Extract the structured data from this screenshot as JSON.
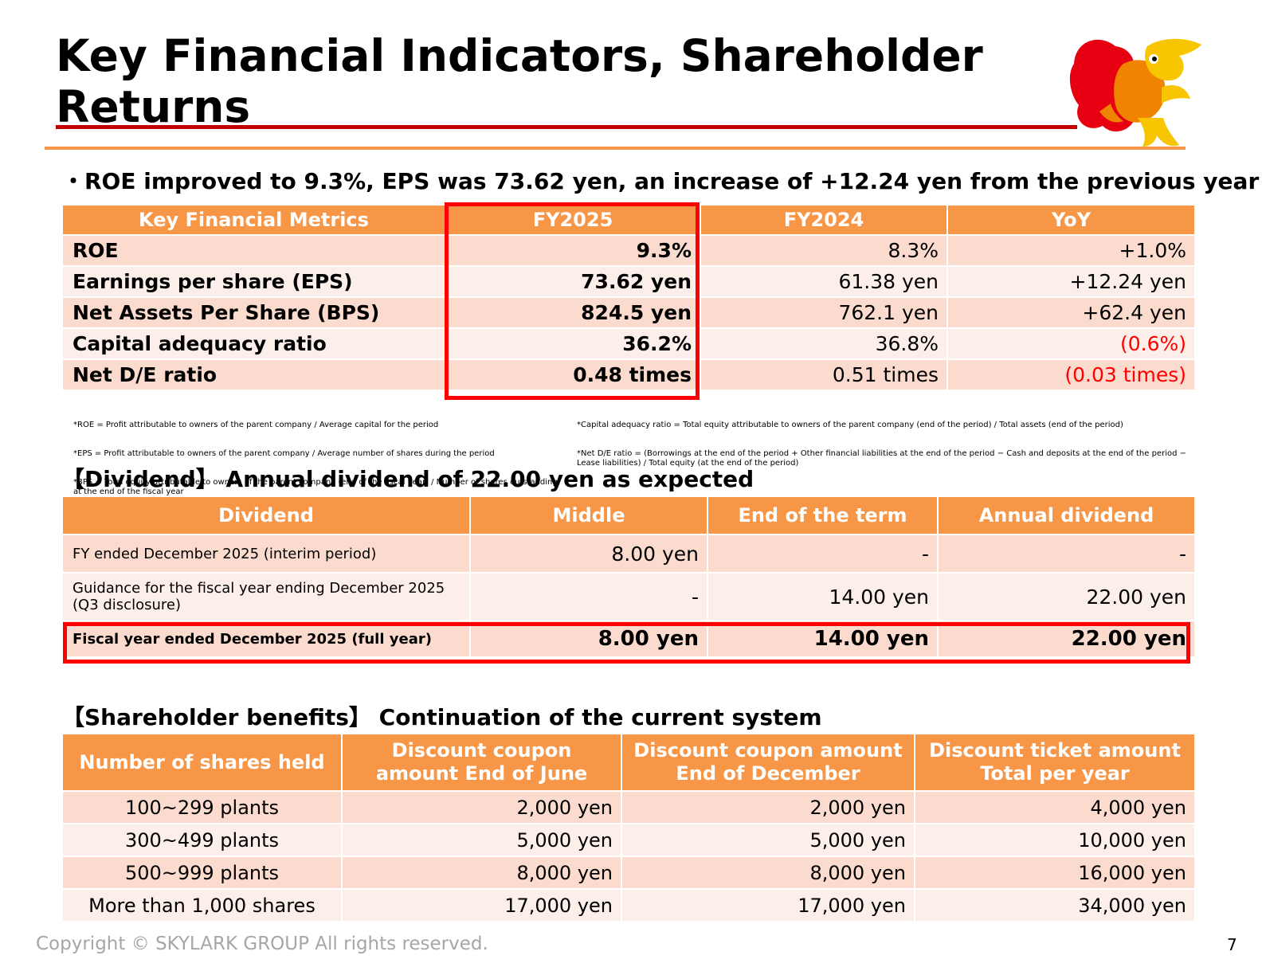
{
  "title": "Key Financial Indicators, Shareholder Returns",
  "headline": "・ROE improved to 9.3%, EPS was 73.62 yen, an increase of +12.24 yen from the previous year",
  "metrics": {
    "headers": [
      "Key Financial Metrics",
      "FY2025",
      "FY2024",
      "YoY"
    ],
    "rows": [
      {
        "label": "ROE",
        "fy2025": "9.3%",
        "fy2024": "8.3%",
        "yoy": "+1.0%"
      },
      {
        "label": "Earnings per share (EPS)",
        "fy2025": "73.62 yen",
        "fy2024": "61.38 yen",
        "yoy": "+12.24 yen"
      },
      {
        "label": "Net Assets Per Share (BPS)",
        "fy2025": "824.5 yen",
        "fy2024": "762.1 yen",
        "yoy": "+62.4 yen"
      },
      {
        "label": "Capital adequacy ratio",
        "fy2025": "36.2%",
        "fy2024": "36.8%",
        "yoy": "(0.6%)"
      },
      {
        "label": "Net D/E ratio",
        "fy2025": "0.48 times",
        "fy2024": "0.51 times",
        "yoy": "(0.03 times)"
      }
    ],
    "negative_color": "#ff0000"
  },
  "footnotes": {
    "left": [
      "*ROE = Profit attributable to owners of the parent company / Average capital for the period",
      "*EPS = Profit attributable to owners of the parent company / Average number of shares during the period",
      "*BPS = Total equity attributable to owners of the parent company (end of the fiscal year) / Number of shares outstanding at the end of the fiscal year"
    ],
    "right": [
      "*Capital adequacy ratio = Total equity attributable to owners of the parent company (end of the period) / Total assets (end of the period)",
      "*Net D/E ratio = (Borrowings at the end of the period + Other financial liabilities at the end of the period − Cash and deposits at the end of the period − Lease liabilities) / Total equity (at the end of the period)"
    ]
  },
  "dividend": {
    "heading": "【Dividend】 Annual dividend of 22.00 yen as expected",
    "headers": [
      "Dividend",
      "Middle",
      "End of the term",
      "Annual dividend"
    ],
    "rows": [
      {
        "label": "FY ended December 2025 (interim period)",
        "middle": "8.00 yen",
        "end": "-",
        "annual": "-"
      },
      {
        "label": "Guidance for the fiscal year ending December 2025 (Q3 disclosure)",
        "middle": "-",
        "end": "14.00 yen",
        "annual": "22.00 yen"
      },
      {
        "label": "Fiscal year ended December 2025 (full year)",
        "middle": "8.00 yen",
        "end": "14.00 yen",
        "annual": "22.00 yen"
      }
    ]
  },
  "benefits": {
    "heading": "【Shareholder benefits】 Continuation of the current system",
    "headers": [
      "Number of shares held",
      "Discount coupon amount End of June",
      "Discount coupon amount End of December",
      "Discount ticket amount Total per year"
    ],
    "rows": [
      {
        "shares": "100~299 plants",
        "june": "2,000 yen",
        "december": "2,000 yen",
        "total": "4,000 yen"
      },
      {
        "shares": "300~499 plants",
        "june": "5,000 yen",
        "december": "5,000 yen",
        "total": "10,000 yen"
      },
      {
        "shares": "500~999 plants",
        "june": "8,000 yen",
        "december": "8,000 yen",
        "total": "16,000 yen"
      },
      {
        "shares": "More than 1,000 shares",
        "june": "17,000 yen",
        "december": "17,000 yen",
        "total": "34,000 yen"
      }
    ]
  },
  "mascot": {
    "icon": "skylark-mascot-icon"
  },
  "colors": {
    "header_orange": "#f79646",
    "row_odd": "#fbdbcd",
    "row_even": "#fcefea",
    "highlight_red": "#ff0000",
    "title_rule": "#c00000"
  },
  "copyright": "Copyright © SKYLARK GROUP All rights reserved.",
  "page_number": "7"
}
